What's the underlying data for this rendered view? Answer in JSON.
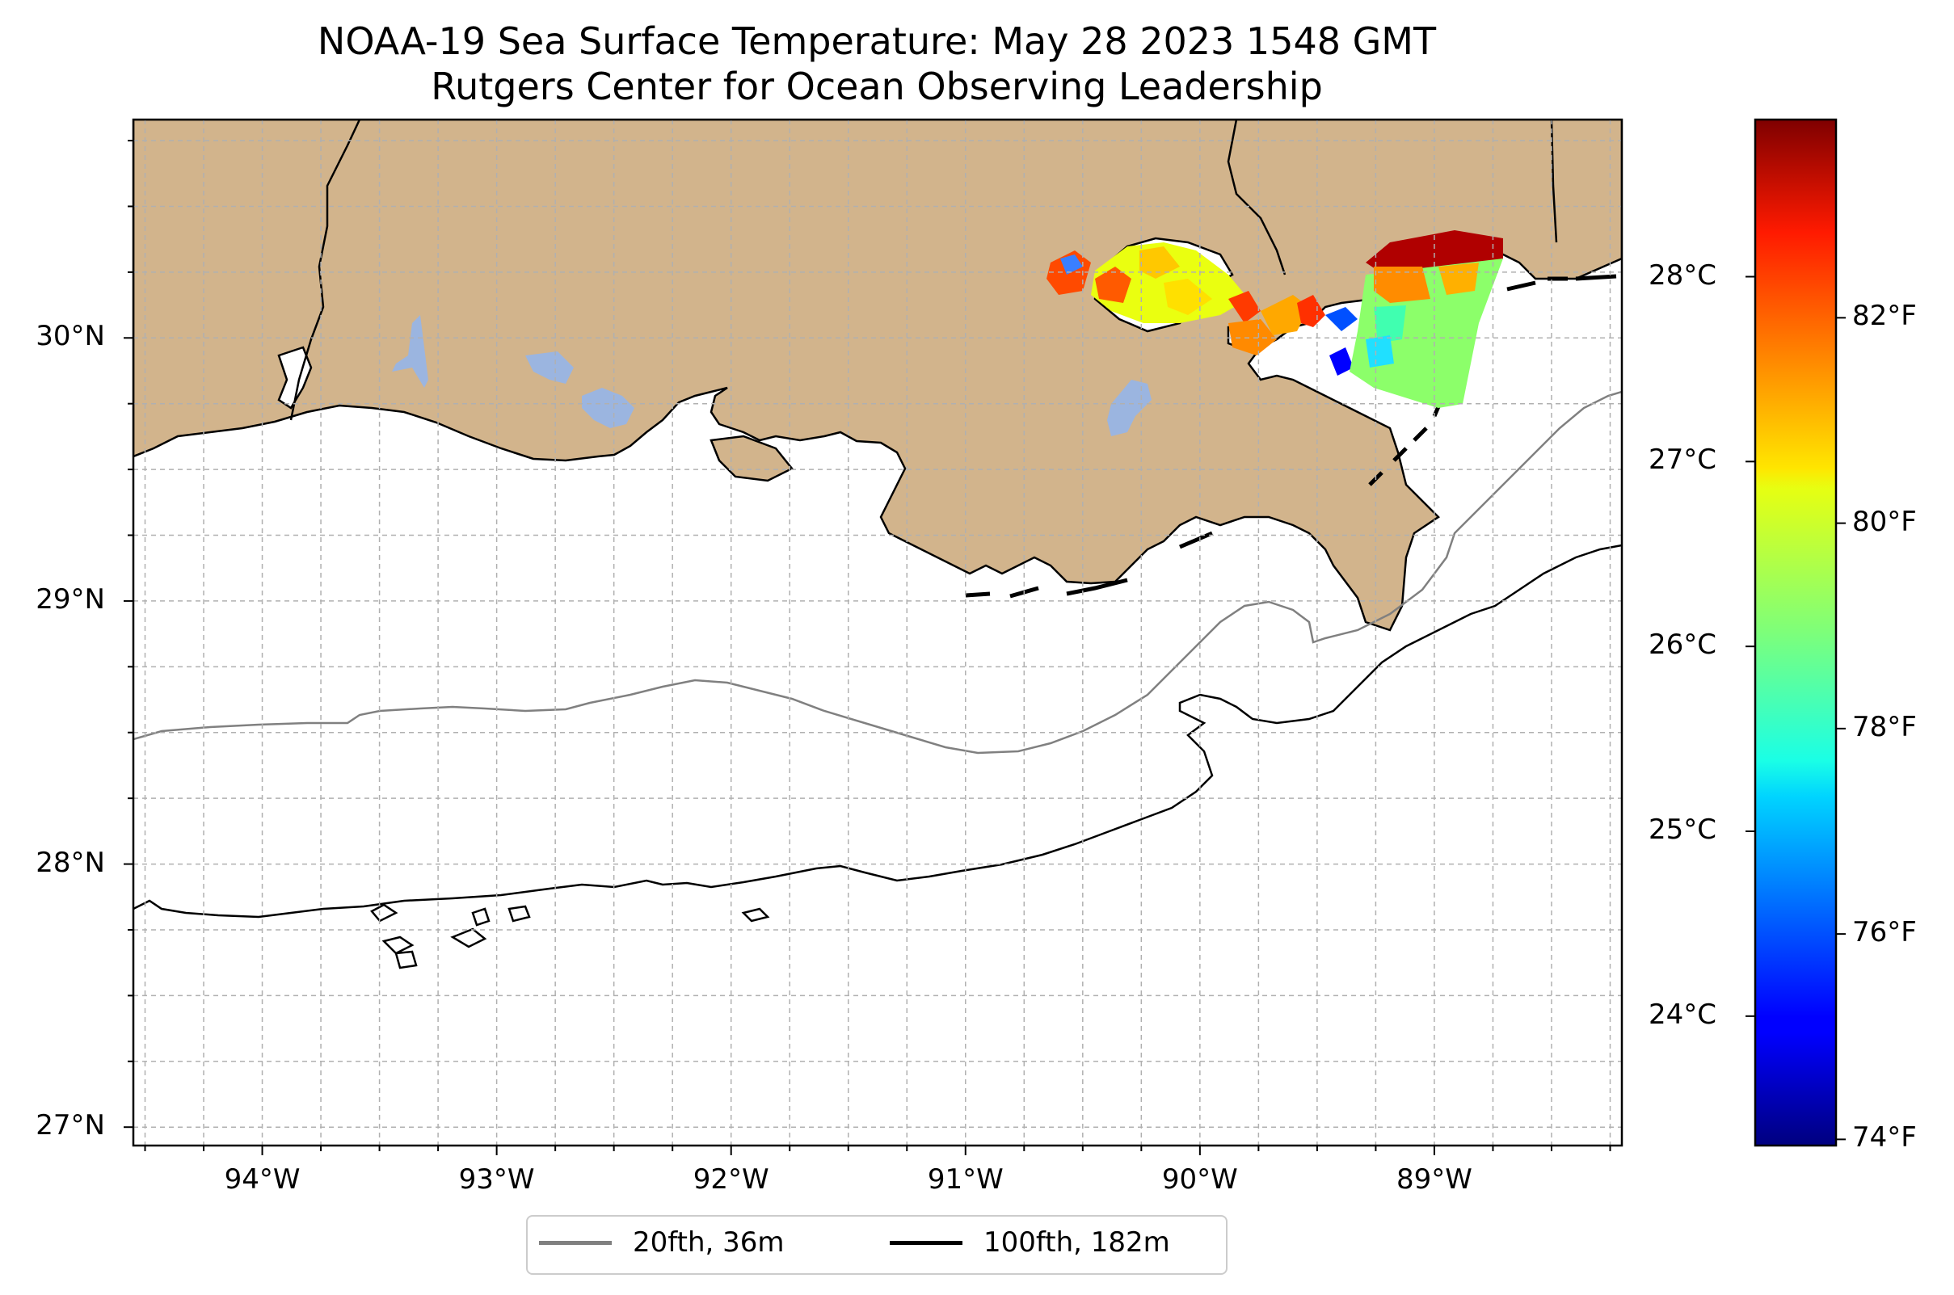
{
  "title": "NOAA-19 Sea Surface Temperature: May 28 2023 1548 GMT",
  "subtitle": "Rutgers Center for Ocean Observing Leadership",
  "map": {
    "lon_range": [
      -94.55,
      -88.2
    ],
    "lat_range": [
      26.93,
      30.83
    ],
    "land_color": "#d2b48c",
    "water_color": "#ffffff",
    "lake_color": "#9bb5e0",
    "grid": true,
    "lat_labels": [
      {
        "text": "30°N",
        "lat": 30
      },
      {
        "text": "29°N",
        "lat": 29
      },
      {
        "text": "28°N",
        "lat": 28
      },
      {
        "text": "27°N",
        "lat": 27
      }
    ],
    "lon_labels": [
      {
        "text": "94°W",
        "lon": -94
      },
      {
        "text": "93°W",
        "lon": -93
      },
      {
        "text": "92°W",
        "lon": -92
      },
      {
        "text": "91°W",
        "lon": -91
      },
      {
        "text": "90°W",
        "lon": -90
      },
      {
        "text": "89°W",
        "lon": -89
      }
    ]
  },
  "colorbar": {
    "colormap": "jet",
    "celsius_range": [
      23.3,
      28.85
    ],
    "celsius_labels": [
      {
        "text": "28°C",
        "value": 28
      },
      {
        "text": "27°C",
        "value": 27
      },
      {
        "text": "26°C",
        "value": 26
      },
      {
        "text": "25°C",
        "value": 25
      },
      {
        "text": "24°C",
        "value": 24
      }
    ],
    "fahrenheit_labels": [
      {
        "text": "82°F",
        "value": 82
      },
      {
        "text": "80°F",
        "value": 80
      },
      {
        "text": "78°F",
        "value": 78
      },
      {
        "text": "76°F",
        "value": 76
      },
      {
        "text": "74°F",
        "value": 74
      }
    ]
  },
  "legend": {
    "placement": "bottom-center",
    "items": [
      {
        "label": "20fth, 36m",
        "color": "#808080"
      },
      {
        "label": "100fth, 182m",
        "color": "#000000"
      }
    ]
  }
}
